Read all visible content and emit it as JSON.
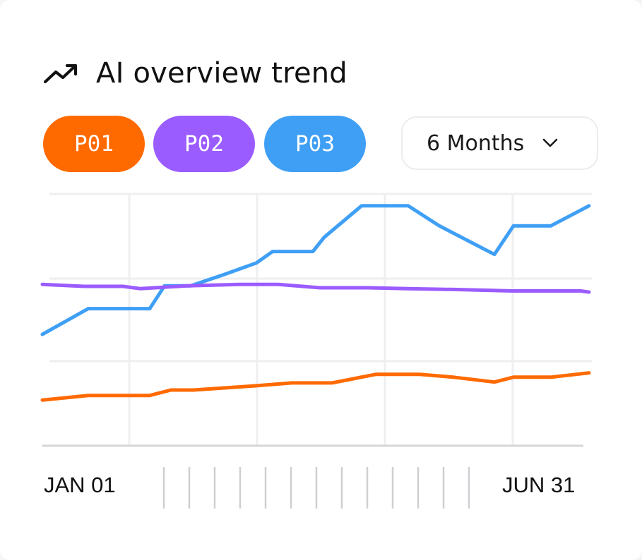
{
  "header": {
    "title": "AI overview trend",
    "icon": "trend-up-icon"
  },
  "filters": {
    "pills": [
      {
        "label": "P01",
        "color": "#ff6a00"
      },
      {
        "label": "P02",
        "color": "#9b5cff"
      },
      {
        "label": "P03",
        "color": "#3f9ff5"
      }
    ],
    "range": {
      "label": "6 Months",
      "icon": "chevron-down-icon"
    }
  },
  "chart_data": {
    "type": "line",
    "x_start_label": "JAN 01",
    "x_end_label": "JUN 31",
    "grid": true,
    "ylim": [
      0,
      100
    ],
    "series": [
      {
        "name": "P03",
        "color": "#3f9ff5",
        "values": [
          [
            0,
            39
          ],
          [
            6.5,
            48
          ],
          [
            15.2,
            48
          ],
          [
            17.3,
            56
          ],
          [
            21,
            56
          ],
          [
            25.8,
            60
          ],
          [
            30.3,
            64
          ],
          [
            32.6,
            68
          ],
          [
            38.3,
            68
          ],
          [
            39.9,
            73
          ],
          [
            45.2,
            84
          ],
          [
            51.8,
            84
          ],
          [
            56.2,
            77
          ],
          [
            64,
            67
          ],
          [
            66.7,
            77
          ],
          [
            72,
            77
          ],
          [
            77.4,
            84
          ]
        ]
      },
      {
        "name": "P02",
        "color": "#9b5cff",
        "values": [
          [
            0,
            56.5
          ],
          [
            5.9,
            55.8
          ],
          [
            11.4,
            55.8
          ],
          [
            13.9,
            55
          ],
          [
            20.5,
            56
          ],
          [
            27.9,
            56.5
          ],
          [
            33.4,
            56.5
          ],
          [
            39.3,
            55.3
          ],
          [
            46.1,
            55.3
          ],
          [
            51.6,
            55
          ],
          [
            58.7,
            54.7
          ],
          [
            66.5,
            54.2
          ],
          [
            76.2,
            54.2
          ],
          [
            77.4,
            53.8
          ]
        ]
      },
      {
        "name": "P01",
        "color": "#ff6a00",
        "values": [
          [
            0,
            16
          ],
          [
            6.5,
            17.6
          ],
          [
            11.4,
            17.6
          ],
          [
            15.2,
            17.6
          ],
          [
            18.2,
            19.5
          ],
          [
            21.4,
            19.5
          ],
          [
            30.2,
            21
          ],
          [
            35.3,
            22
          ],
          [
            41,
            22
          ],
          [
            47.2,
            25
          ],
          [
            53.4,
            25
          ],
          [
            58.2,
            24
          ],
          [
            64,
            22.3
          ],
          [
            66.7,
            24
          ],
          [
            72,
            24
          ],
          [
            77.4,
            25.5
          ]
        ]
      }
    ]
  }
}
